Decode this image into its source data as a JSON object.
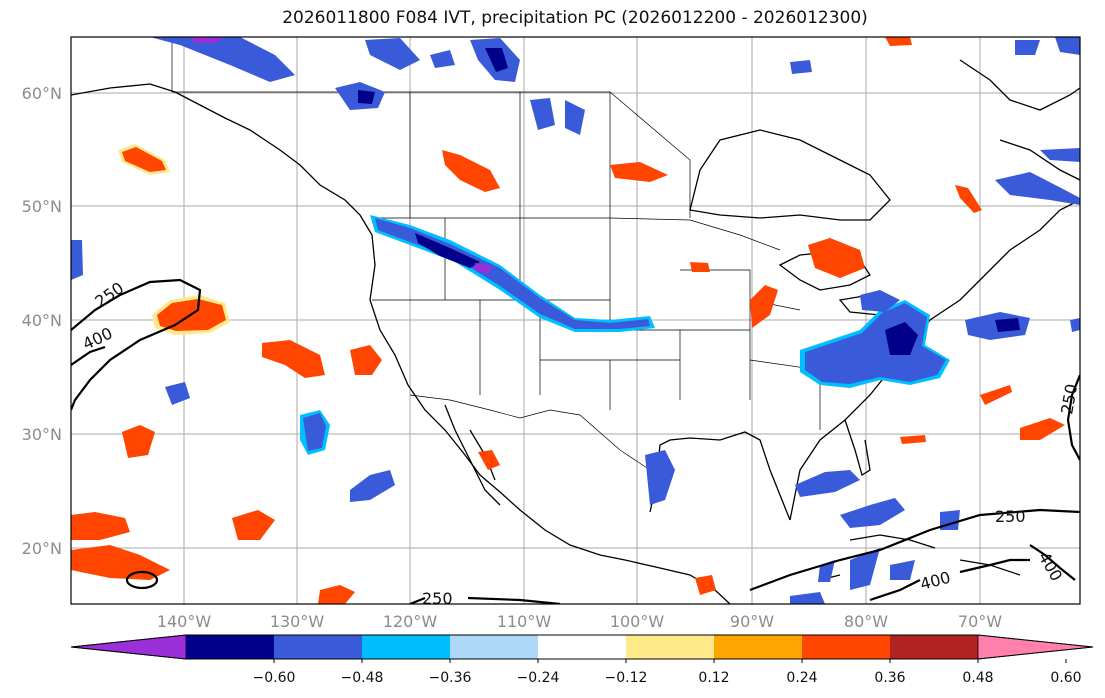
{
  "title": "2026011800 F084 IVT, precipitation PC (2026012200 - 2026012300)",
  "latitudes": [
    "60°N",
    "50°N",
    "40°N",
    "30°N",
    "20°N"
  ],
  "longitudes": [
    "140°W",
    "130°W",
    "120°W",
    "110°W",
    "100°W",
    "90°W",
    "80°W",
    "70°W"
  ],
  "contour_labels": [
    "250",
    "400",
    "250",
    "250",
    "250",
    "400",
    "400"
  ],
  "colorbar": {
    "ticks": [
      "−0.60",
      "−0.48",
      "−0.36",
      "−0.24",
      "−0.12",
      "0.12",
      "0.24",
      "0.36",
      "0.48",
      "0.60"
    ],
    "colors": [
      "#9b30d9",
      "#00008b",
      "#3a5bd9",
      "#00bfff",
      "#add8f7",
      "#ffffff",
      "#ffea8a",
      "#ffa500",
      "#ff4500",
      "#b22222",
      "#ff80aa"
    ]
  }
}
